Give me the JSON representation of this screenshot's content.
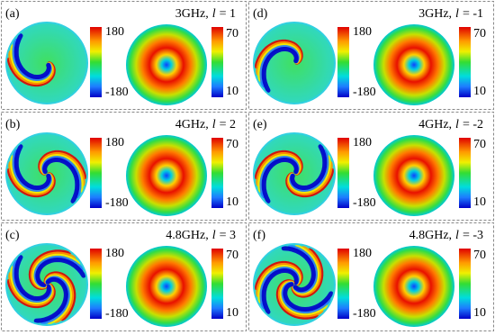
{
  "panels": [
    {
      "label": "(a)",
      "freq": "3GHz,",
      "l_symbol": "l",
      "l_value": "= 1",
      "l": 1,
      "phase_ticks": [
        180,
        -180
      ],
      "amp_ticks": [
        70,
        10
      ]
    },
    {
      "label": "(b)",
      "freq": "4GHz,",
      "l_symbol": "l",
      "l_value": "= 2",
      "l": 2,
      "phase_ticks": [
        180,
        -180
      ],
      "amp_ticks": [
        70,
        10
      ]
    },
    {
      "label": "(c)",
      "freq": "4.8GHz,",
      "l_symbol": "l",
      "l_value": "= 3",
      "l": 3,
      "phase_ticks": [
        180,
        -180
      ],
      "amp_ticks": [
        70,
        10
      ]
    },
    {
      "label": "(d)",
      "freq": "3GHz,",
      "l_symbol": "l",
      "l_value": "= -1",
      "l": -1,
      "phase_ticks": [
        180,
        -180
      ],
      "amp_ticks": [
        70,
        10
      ]
    },
    {
      "label": "(e)",
      "freq": "4GHz,",
      "l_symbol": "l",
      "l_value": "= -2",
      "l": -2,
      "phase_ticks": [
        180,
        -180
      ],
      "amp_ticks": [
        70,
        10
      ]
    },
    {
      "label": "(f)",
      "freq": "4.8GHz,",
      "l_symbol": "l",
      "l_value": "= -3",
      "l": -3,
      "phase_ticks": [
        180,
        -180
      ],
      "amp_ticks": [
        70,
        10
      ]
    }
  ]
}
